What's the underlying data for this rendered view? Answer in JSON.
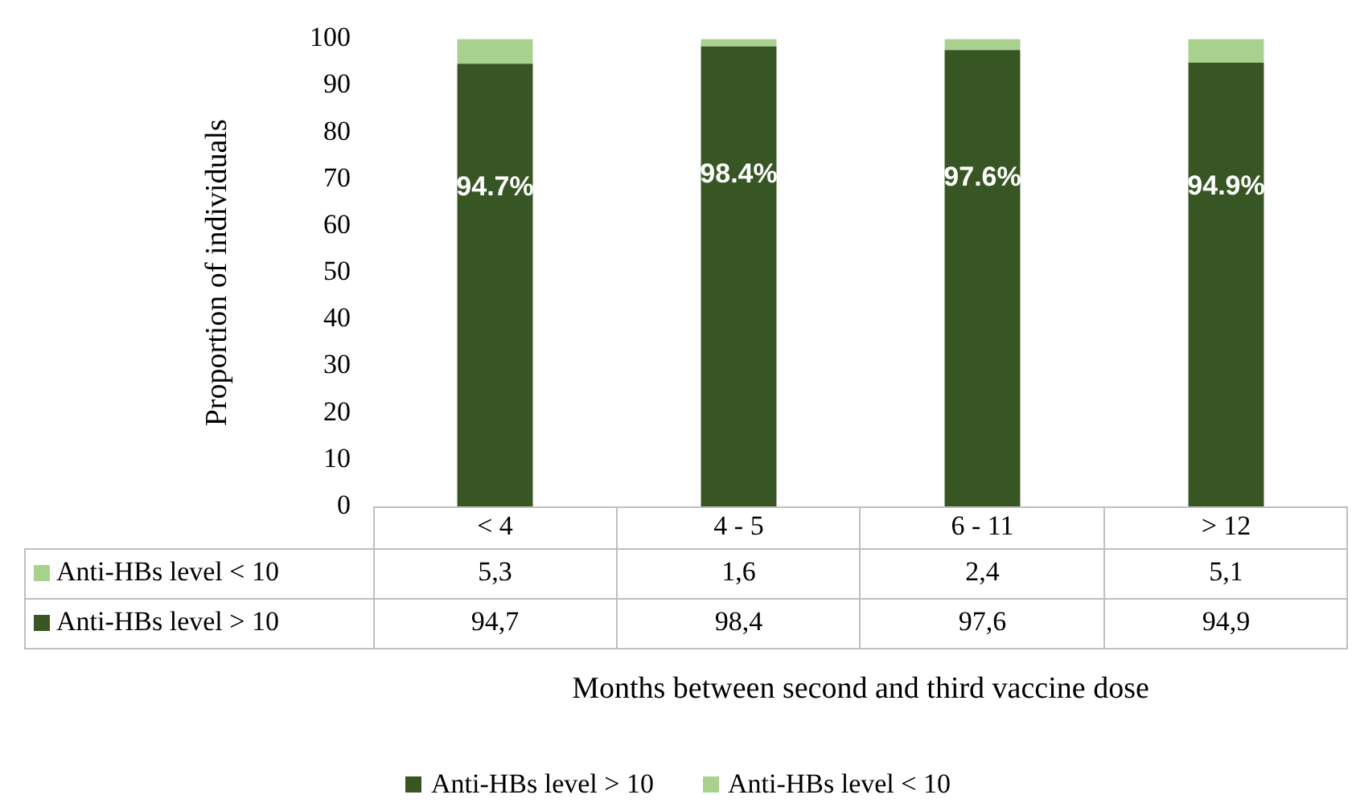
{
  "chart_data": {
    "type": "bar",
    "stacked": true,
    "ylabel": "Proportion of individuals",
    "xlabel": "Months between second and third vaccine dose",
    "categories": [
      "< 4",
      "4 - 5",
      "6 - 11",
      "> 12"
    ],
    "series": [
      {
        "name": "Anti-HBs level > 10",
        "color": "#375623",
        "values": [
          94.7,
          98.4,
          97.6,
          94.9
        ],
        "value_labels": [
          "94,7",
          "98,4",
          "97,6",
          "94,9"
        ]
      },
      {
        "name": "Anti-HBs level < 10",
        "color": "#a9d18e",
        "values": [
          5.3,
          1.6,
          2.4,
          5.1
        ],
        "value_labels": [
          "5,3",
          "1,6",
          "2,4",
          "5,1"
        ]
      }
    ],
    "annotations": [
      "94.7%",
      "98.4%",
      "97.6%",
      "94.9%"
    ],
    "ylim": [
      0,
      100
    ],
    "yticks": [
      0,
      10,
      20,
      30,
      40,
      50,
      60,
      70,
      80,
      90,
      100
    ],
    "legend": "bottom"
  }
}
